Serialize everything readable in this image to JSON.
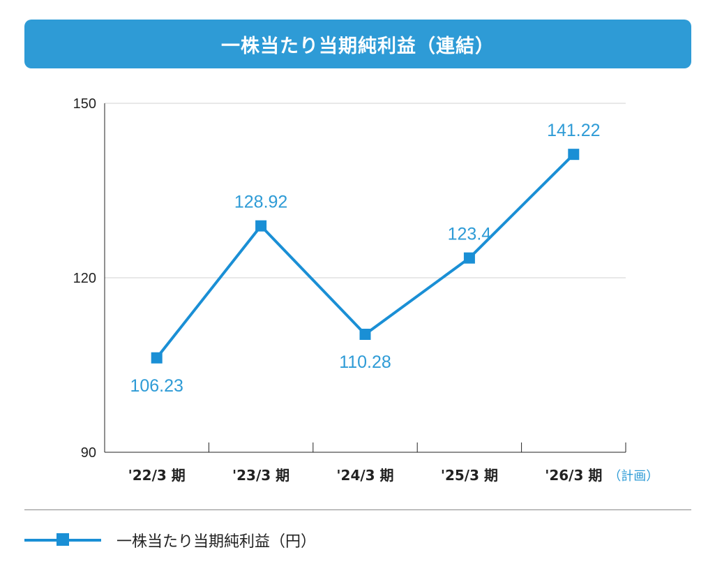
{
  "chart_data": {
    "type": "line",
    "title": "一株当たり当期純利益（連結）",
    "categories": [
      "'22/3 期",
      "'23/3 期",
      "'24/3 期",
      "'25/3 期",
      "'26/3 期"
    ],
    "category_note": "（計画）",
    "series": [
      {
        "name": "一株当たり当期純利益（円）",
        "values": [
          106.23,
          128.92,
          110.28,
          123.4,
          141.22
        ]
      }
    ],
    "data_labels": [
      "106.23",
      "128.92",
      "110.28",
      "123.4",
      "141.22"
    ],
    "ylim": [
      90,
      150
    ],
    "yticks": [
      90,
      120,
      150
    ],
    "grid": true,
    "legend_position": "bottom-left",
    "colors": {
      "series": "#1a8fd5",
      "label": "#2e9bd6",
      "banner": "#2e9bd6"
    }
  }
}
